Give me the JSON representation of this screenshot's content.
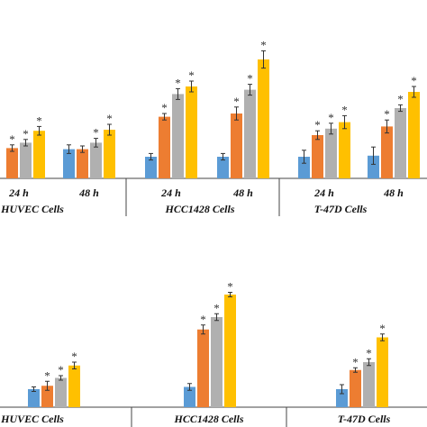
{
  "colors": {
    "blue": "#5b9bd5",
    "orange": "#ed7d31",
    "gray": "#b0b0b0",
    "gold": "#ffc000",
    "axis": "#444444",
    "err": "#333333"
  },
  "chart_data": [
    {
      "type": "bar",
      "panel": "top",
      "ylim": [
        0,
        100
      ],
      "significance_marker": "*",
      "groups": [
        {
          "cell_line": "HUVEC Cells",
          "timepoints": [
            {
              "label": "24 h",
              "values": [
                null,
                28,
                33,
                44
              ],
              "errors": [
                null,
                3,
                3,
                4
              ],
              "significant": [
                false,
                true,
                true,
                true
              ]
            },
            {
              "label": "48 h",
              "values": [
                27,
                27,
                33,
                45
              ],
              "errors": [
                4,
                3,
                4,
                5
              ],
              "significant": [
                false,
                false,
                true,
                true
              ]
            }
          ]
        },
        {
          "cell_line": "HCC1428 Cells",
          "timepoints": [
            {
              "label": "24 h",
              "values": [
                20,
                57,
                78,
                85
              ],
              "errors": [
                3,
                3,
                5,
                5
              ],
              "significant": [
                false,
                true,
                true,
                true
              ]
            },
            {
              "label": "48 h",
              "values": [
                20,
                60,
                82,
                110
              ],
              "errors": [
                3,
                6,
                5,
                8
              ],
              "significant": [
                false,
                true,
                true,
                true
              ]
            }
          ]
        },
        {
          "cell_line": "T-47D Cells",
          "timepoints": [
            {
              "label": "24 h",
              "values": [
                20,
                40,
                46,
                52
              ],
              "errors": [
                6,
                4,
                5,
                6
              ],
              "significant": [
                false,
                true,
                true,
                true
              ]
            },
            {
              "label": "48 h",
              "values": [
                21,
                48,
                65,
                80
              ],
              "errors": [
                8,
                6,
                3,
                5
              ],
              "significant": [
                false,
                true,
                true,
                true
              ]
            }
          ]
        }
      ]
    },
    {
      "type": "bar",
      "panel": "bottom",
      "ylim": [
        0,
        100
      ],
      "significance_marker": "*",
      "groups": [
        {
          "cell_line": "HUVEC Cells",
          "values": [
            16,
            19,
            26,
            37
          ],
          "errors": [
            2,
            4,
            2,
            3
          ],
          "significant": [
            false,
            true,
            true,
            true
          ]
        },
        {
          "cell_line": "HCC1428 Cells",
          "values": [
            18,
            69,
            80,
            100
          ],
          "errors": [
            3,
            4,
            3,
            2
          ],
          "significant": [
            false,
            true,
            true,
            true
          ]
        },
        {
          "cell_line": "T-47D Cells",
          "values": [
            16,
            33,
            40,
            62
          ],
          "errors": [
            4,
            2,
            3,
            3
          ],
          "significant": [
            false,
            true,
            true,
            true
          ]
        }
      ]
    }
  ]
}
